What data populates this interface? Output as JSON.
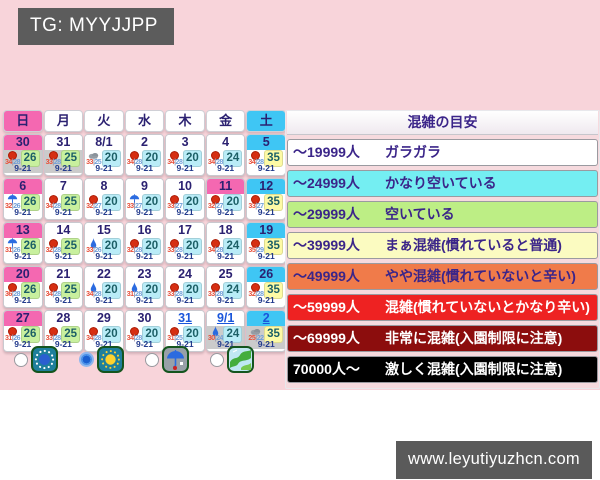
{
  "banner": {
    "text": "TG: MYYJJPP"
  },
  "watermark": {
    "text": "www.leyutiyuzhcn.com"
  },
  "colors": {
    "page_bg": "#f8d4da",
    "sunday_header": "#f468b1",
    "saturday_header": "#3fc6f4",
    "holiday_header": "#f468b1",
    "grayed_body": "#cbcbcb",
    "crowd_cyan": "#b9ecf7",
    "crowd_green": "#c8f09e",
    "crowd_yellow": "#fdfaa5"
  },
  "calendar": {
    "day_headers": [
      {
        "label": "日",
        "type": "sunday"
      },
      {
        "label": "月",
        "type": "normal"
      },
      {
        "label": "火",
        "type": "normal"
      },
      {
        "label": "水",
        "type": "normal"
      },
      {
        "label": "木",
        "type": "normal"
      },
      {
        "label": "金",
        "type": "normal"
      },
      {
        "label": "土",
        "type": "saturday"
      }
    ],
    "weeks": [
      [
        {
          "date": "30",
          "header": "sunday",
          "grayed": true,
          "link": false,
          "weather": "sun",
          "temp_hi": "34",
          "temp_lo": "28",
          "crowd": "26",
          "crowd_bg": "#c8f09e",
          "hours": "9-21"
        },
        {
          "date": "31",
          "header": "normal",
          "grayed": true,
          "link": false,
          "weather": "sun",
          "temp_hi": "33",
          "temp_lo": "28",
          "crowd": "25",
          "crowd_bg": "#c8f09e",
          "hours": "9-21"
        },
        {
          "date": "8/1",
          "header": "normal",
          "grayed": false,
          "link": false,
          "weather": "cloud",
          "temp_hi": "33",
          "temp_lo": "25",
          "crowd": "20",
          "crowd_bg": "#b9ecf7",
          "hours": "9-21"
        },
        {
          "date": "2",
          "header": "normal",
          "grayed": false,
          "link": false,
          "weather": "sun",
          "temp_hi": "34",
          "temp_lo": "28",
          "crowd": "20",
          "crowd_bg": "#b9ecf7",
          "hours": "9-21"
        },
        {
          "date": "3",
          "header": "normal",
          "grayed": false,
          "link": false,
          "weather": "sun",
          "temp_hi": "34",
          "temp_lo": "28",
          "crowd": "20",
          "crowd_bg": "#b9ecf7",
          "hours": "9-21"
        },
        {
          "date": "4",
          "header": "normal",
          "grayed": false,
          "link": false,
          "weather": "sun",
          "temp_hi": "34",
          "temp_lo": "28",
          "crowd": "24",
          "crowd_bg": "#b9ecf7",
          "hours": "9-21"
        },
        {
          "date": "5",
          "header": "saturday",
          "grayed": false,
          "link": false,
          "weather": "sun",
          "temp_hi": "34",
          "temp_lo": "28",
          "crowd": "35",
          "crowd_bg": "#fdfaa5",
          "hours": "9-21"
        }
      ],
      [
        {
          "date": "6",
          "header": "sunday",
          "grayed": false,
          "link": false,
          "weather": "umbrella",
          "temp_hi": "32",
          "temp_lo": "26",
          "crowd": "26",
          "crowd_bg": "#c8f09e",
          "hours": "9-21"
        },
        {
          "date": "7",
          "header": "normal",
          "grayed": false,
          "link": false,
          "weather": "sun",
          "temp_hi": "34",
          "temp_lo": "28",
          "crowd": "25",
          "crowd_bg": "#c8f09e",
          "hours": "9-21"
        },
        {
          "date": "8",
          "header": "normal",
          "grayed": false,
          "link": false,
          "weather": "sun",
          "temp_hi": "32",
          "temp_lo": "27",
          "crowd": "20",
          "crowd_bg": "#b9ecf7",
          "hours": "9-21"
        },
        {
          "date": "9",
          "header": "normal",
          "grayed": false,
          "link": false,
          "weather": "umbrella",
          "temp_hi": "33",
          "temp_lo": "27",
          "crowd": "20",
          "crowd_bg": "#b9ecf7",
          "hours": "9-21"
        },
        {
          "date": "10",
          "header": "normal",
          "grayed": false,
          "link": false,
          "weather": "sun",
          "temp_hi": "33",
          "temp_lo": "27",
          "crowd": "20",
          "crowd_bg": "#b9ecf7",
          "hours": "9-21"
        },
        {
          "date": "11",
          "header": "holiday",
          "grayed": false,
          "link": false,
          "weather": "sun",
          "temp_hi": "32",
          "temp_lo": "27",
          "crowd": "20",
          "crowd_bg": "#b9ecf7",
          "hours": "9-21"
        },
        {
          "date": "12",
          "header": "saturday",
          "grayed": false,
          "link": false,
          "weather": "sun",
          "temp_hi": "33",
          "temp_lo": "27",
          "crowd": "35",
          "crowd_bg": "#fdfaa5",
          "hours": "9-21"
        }
      ],
      [
        {
          "date": "13",
          "header": "sunday",
          "grayed": false,
          "link": false,
          "weather": "umbrella",
          "temp_hi": "31",
          "temp_lo": "26",
          "crowd": "26",
          "crowd_bg": "#c8f09e",
          "hours": "9-21"
        },
        {
          "date": "14",
          "header": "normal",
          "grayed": false,
          "link": false,
          "weather": "sun",
          "temp_hi": "32",
          "temp_lo": "28",
          "crowd": "25",
          "crowd_bg": "#c8f09e",
          "hours": "9-21"
        },
        {
          "date": "15",
          "header": "normal",
          "grayed": false,
          "link": false,
          "weather": "drop",
          "temp_hi": "33",
          "temp_lo": "26",
          "crowd": "20",
          "crowd_bg": "#b9ecf7",
          "hours": "9-21"
        },
        {
          "date": "16",
          "header": "normal",
          "grayed": false,
          "link": false,
          "weather": "sun",
          "temp_hi": "32",
          "temp_lo": "28",
          "crowd": "20",
          "crowd_bg": "#b9ecf7",
          "hours": "9-21"
        },
        {
          "date": "17",
          "header": "normal",
          "grayed": false,
          "link": false,
          "weather": "sun",
          "temp_hi": "33",
          "temp_lo": "28",
          "crowd": "20",
          "crowd_bg": "#b9ecf7",
          "hours": "9-21"
        },
        {
          "date": "18",
          "header": "normal",
          "grayed": false,
          "link": false,
          "weather": "sun",
          "temp_hi": "34",
          "temp_lo": "28",
          "crowd": "24",
          "crowd_bg": "#b9ecf7",
          "hours": "9-21"
        },
        {
          "date": "19",
          "header": "saturday",
          "grayed": false,
          "link": false,
          "weather": "sun",
          "temp_hi": "35",
          "temp_lo": "29",
          "crowd": "35",
          "crowd_bg": "#fdfaa5",
          "hours": "9-21"
        }
      ],
      [
        {
          "date": "20",
          "header": "sunday",
          "grayed": false,
          "link": false,
          "weather": "sun",
          "temp_hi": "36",
          "temp_lo": "28",
          "crowd": "26",
          "crowd_bg": "#c8f09e",
          "hours": "9-21"
        },
        {
          "date": "21",
          "header": "normal",
          "grayed": false,
          "link": false,
          "weather": "sun",
          "temp_hi": "34",
          "temp_lo": "28",
          "crowd": "25",
          "crowd_bg": "#c8f09e",
          "hours": "9-21"
        },
        {
          "date": "22",
          "header": "normal",
          "grayed": false,
          "link": false,
          "weather": "drop",
          "temp_hi": "34",
          "temp_lo": "28",
          "crowd": "20",
          "crowd_bg": "#b9ecf7",
          "hours": "9-21"
        },
        {
          "date": "23",
          "header": "normal",
          "grayed": false,
          "link": false,
          "weather": "drop",
          "temp_hi": "31",
          "temp_lo": "28",
          "crowd": "20",
          "crowd_bg": "#b9ecf7",
          "hours": "9-21"
        },
        {
          "date": "24",
          "header": "normal",
          "grayed": false,
          "link": false,
          "weather": "sun",
          "temp_hi": "33",
          "temp_lo": "28",
          "crowd": "20",
          "crowd_bg": "#b9ecf7",
          "hours": "9-21"
        },
        {
          "date": "25",
          "header": "normal",
          "grayed": false,
          "link": false,
          "weather": "sun",
          "temp_hi": "33",
          "temp_lo": "28",
          "crowd": "24",
          "crowd_bg": "#b9ecf7",
          "hours": "9-21"
        },
        {
          "date": "26",
          "header": "saturday",
          "grayed": false,
          "link": false,
          "weather": "sun",
          "temp_hi": "32",
          "temp_lo": "28",
          "crowd": "35",
          "crowd_bg": "#fdfaa5",
          "hours": "9-21"
        }
      ],
      [
        {
          "date": "27",
          "header": "sunday",
          "grayed": false,
          "link": false,
          "weather": "sun",
          "temp_hi": "31",
          "temp_lo": "26",
          "crowd": "26",
          "crowd_bg": "#c8f09e",
          "hours": "9-21"
        },
        {
          "date": "28",
          "header": "normal",
          "grayed": false,
          "link": false,
          "weather": "sun",
          "temp_hi": "33",
          "temp_lo": "28",
          "crowd": "25",
          "crowd_bg": "#c8f09e",
          "hours": "9-21"
        },
        {
          "date": "29",
          "header": "normal",
          "grayed": false,
          "link": false,
          "weather": "sun",
          "temp_hi": "34",
          "temp_lo": "28",
          "crowd": "20",
          "crowd_bg": "#b9ecf7",
          "hours": "9-21"
        },
        {
          "date": "30",
          "header": "normal",
          "grayed": false,
          "link": false,
          "weather": "sun",
          "temp_hi": "34",
          "temp_lo": "28",
          "crowd": "20",
          "crowd_bg": "#b9ecf7",
          "hours": "9-21"
        },
        {
          "date": "31",
          "header": "normal",
          "grayed": false,
          "link": true,
          "weather": "sun",
          "temp_hi": "31",
          "temp_lo": "25",
          "crowd": "20",
          "crowd_bg": "#b9ecf7",
          "hours": "9-21"
        },
        {
          "date": "9/1",
          "header": "normal",
          "grayed": true,
          "link": true,
          "weather": "drop",
          "temp_hi": "30",
          "temp_lo": "24",
          "crowd": "24",
          "crowd_bg": "#b9ecf7",
          "hours": "9-21"
        },
        {
          "date": "2",
          "header": "saturday",
          "grayed": true,
          "link": true,
          "weather": "cloud",
          "temp_hi": "25",
          "temp_lo": "22",
          "crowd": "35",
          "crowd_bg": "#fdfaa5",
          "hours": "9-21"
        }
      ]
    ]
  },
  "filters": [
    {
      "icon": "dotted-ring-icon",
      "selected": false
    },
    {
      "icon": "sun-badge-icon",
      "selected": true
    },
    {
      "icon": "umbrella-badge-icon",
      "selected": false
    },
    {
      "icon": "map-badge-icon",
      "selected": false
    }
  ],
  "legend": {
    "title": "混雑の目安",
    "rows": [
      {
        "range": "～19999人",
        "label": "ガラガラ",
        "bg": "#ffffff",
        "fg": "#3b2589"
      },
      {
        "range": "～24999人",
        "label": "かなり空いている",
        "bg": "#74eef2",
        "fg": "#3b2589"
      },
      {
        "range": "～29999人",
        "label": "空いている",
        "bg": "#bdee85",
        "fg": "#3b2589"
      },
      {
        "range": "～39999人",
        "label": "まぁ混雑(慣れていると普通)",
        "bg": "#fbfbc1",
        "fg": "#3b2589"
      },
      {
        "range": "～49999人",
        "label": "やや混雑(慣れていないと辛い)",
        "bg": "#f07b4a",
        "fg": "#3b2589"
      },
      {
        "range": "～59999人",
        "label": "混雑(慣れていないとかなり辛い)",
        "bg": "#ee2222",
        "fg": "#ffffff"
      },
      {
        "range": "～69999人",
        "label": "非常に混雑(入園制限に注意)",
        "bg": "#8c0d0d",
        "fg": "#ffffff"
      },
      {
        "range": "70000人～",
        "label": "激しく混雑(入園制限に注意)",
        "bg": "#000000",
        "fg": "#ffffff"
      }
    ]
  }
}
